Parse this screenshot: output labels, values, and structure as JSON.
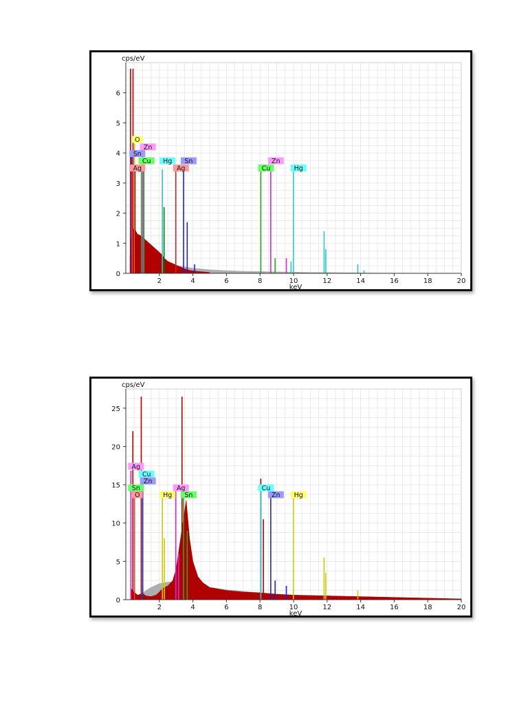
{
  "chart_data": [
    {
      "type": "bar",
      "ylabel": "cps/eV",
      "xlabel": "keV",
      "xlim": [
        0,
        20
      ],
      "ylim": [
        0,
        7
      ],
      "xticks": [
        2,
        4,
        6,
        8,
        10,
        12,
        14,
        16,
        18,
        20
      ],
      "yticks": [
        0,
        1,
        2,
        3,
        4,
        5,
        6
      ],
      "grid": true,
      "element_labels": [
        {
          "text": "O",
          "x": 0.52,
          "y": 4.45,
          "color": "#ffff66"
        },
        {
          "text": "Zn",
          "x": 1.01,
          "y": 4.2,
          "color": "#ff99ff"
        },
        {
          "text": "Sn",
          "x": 0.38,
          "y": 3.98,
          "color": "#9999ff"
        },
        {
          "text": "Cu",
          "x": 0.93,
          "y": 3.74,
          "color": "#66ff66"
        },
        {
          "text": "Hg",
          "x": 2.18,
          "y": 3.74,
          "color": "#66ffff"
        },
        {
          "text": "Sn",
          "x": 3.44,
          "y": 3.74,
          "color": "#9999ff"
        },
        {
          "text": "Ag",
          "x": 0.38,
          "y": 3.5,
          "color": "#ff9999"
        },
        {
          "text": "Ag",
          "x": 2.98,
          "y": 3.5,
          "color": "#ff9999"
        },
        {
          "text": "Zn",
          "x": 8.64,
          "y": 3.74,
          "color": "#ff99ff"
        },
        {
          "text": "Cu",
          "x": 8.05,
          "y": 3.5,
          "color": "#66ff66"
        },
        {
          "text": "Hg",
          "x": 9.99,
          "y": 3.5,
          "color": "#66ffff"
        }
      ],
      "series": [
        {
          "color": "#aaaaaa",
          "x": [
            0.3,
            0.6,
            1.0,
            1.5,
            2.0,
            2.5,
            3.0,
            3.5,
            4.0,
            5.0,
            6.0,
            7.0,
            8.0,
            9.0,
            10.0,
            11.0,
            12.0,
            13.0,
            14.0,
            15.0,
            16.0,
            18.0,
            20.0
          ],
          "values": [
            0.02,
            0.05,
            0.12,
            0.2,
            0.26,
            0.28,
            0.26,
            0.22,
            0.17,
            0.12,
            0.09,
            0.07,
            0.06,
            0.05,
            0.04,
            0.03,
            0.025,
            0.02,
            0.015,
            0.01,
            0.008,
            0.005,
            0.003
          ]
        },
        {
          "color": "#b00000",
          "x": [
            0.25,
            0.35,
            0.5,
            0.7,
            0.9,
            1.1,
            1.3,
            1.5,
            1.7,
            1.9,
            2.1,
            2.3,
            2.5,
            2.7,
            2.9,
            3.1,
            3.3,
            3.5,
            3.8,
            4.2,
            4.6,
            5.0
          ],
          "values": [
            0.6,
            1.3,
            1.5,
            1.3,
            1.25,
            1.15,
            1.05,
            0.95,
            0.85,
            0.75,
            0.65,
            0.5,
            0.4,
            0.35,
            0.3,
            0.25,
            0.2,
            0.15,
            0.1,
            0.07,
            0.05,
            0.03
          ]
        }
      ],
      "lines": [
        {
          "x": 0.28,
          "y": 6.8,
          "color": "#b00000"
        },
        {
          "x": 0.43,
          "y": 6.8,
          "color": "#b00000"
        },
        {
          "x": 0.52,
          "y": 4.3,
          "color": "#cccc00"
        },
        {
          "x": 0.35,
          "y": 3.9,
          "color": "#2222cc"
        },
        {
          "x": 0.38,
          "y": 3.4,
          "color": "#ff3333"
        },
        {
          "x": 0.55,
          "y": 3.4,
          "color": "#b00000"
        },
        {
          "x": 0.93,
          "y": 3.6,
          "color": "#22aa22"
        },
        {
          "x": 1.01,
          "y": 4.1,
          "color": "#dd22dd"
        },
        {
          "x": 1.08,
          "y": 3.4,
          "color": "#22aa22"
        },
        {
          "x": 2.18,
          "y": 3.45,
          "color": "#22cccc"
        },
        {
          "x": 2.28,
          "y": 2.2,
          "color": "#007700"
        },
        {
          "x": 2.98,
          "y": 3.45,
          "color": "#cc2222"
        },
        {
          "x": 3.44,
          "y": 3.5,
          "color": "#2222cc"
        },
        {
          "x": 3.66,
          "y": 1.7,
          "color": "#2222cc"
        },
        {
          "x": 4.1,
          "y": 0.3,
          "color": "#2222cc"
        },
        {
          "x": 8.05,
          "y": 3.4,
          "color": "#22aa22"
        },
        {
          "x": 8.64,
          "y": 3.4,
          "color": "#dd22dd"
        },
        {
          "x": 8.9,
          "y": 0.5,
          "color": "#22aa22"
        },
        {
          "x": 9.57,
          "y": 0.5,
          "color": "#dd22dd"
        },
        {
          "x": 9.99,
          "y": 3.4,
          "color": "#22cccc"
        },
        {
          "x": 9.85,
          "y": 0.4,
          "color": "#22cccc"
        },
        {
          "x": 11.82,
          "y": 1.4,
          "color": "#22cccc"
        },
        {
          "x": 11.92,
          "y": 0.8,
          "color": "#22cccc"
        },
        {
          "x": 13.83,
          "y": 0.3,
          "color": "#22cccc"
        },
        {
          "x": 14.2,
          "y": 0.1,
          "color": "#22cccc"
        }
      ]
    },
    {
      "type": "bar",
      "ylabel": "cps/eV",
      "xlabel": "keV",
      "xlim": [
        0,
        20
      ],
      "ylim": [
        0,
        27.5
      ],
      "xticks": [
        2,
        4,
        6,
        8,
        10,
        12,
        14,
        16,
        18,
        20
      ],
      "yticks": [
        0,
        5,
        10,
        15,
        20,
        25
      ],
      "grid": true,
      "element_labels": [
        {
          "text": "Ag",
          "x": 0.3,
          "y": 17.4,
          "color": "#ff99ff"
        },
        {
          "text": "Cu",
          "x": 0.93,
          "y": 16.4,
          "color": "#66ffff"
        },
        {
          "text": "Zn",
          "x": 1.01,
          "y": 15.5,
          "color": "#9999ff"
        },
        {
          "text": "Sn",
          "x": 0.3,
          "y": 14.6,
          "color": "#66ff66"
        },
        {
          "text": "O",
          "x": 0.52,
          "y": 13.7,
          "color": "#ff9999"
        },
        {
          "text": "Hg",
          "x": 2.18,
          "y": 13.7,
          "color": "#ffff66"
        },
        {
          "text": "Ag",
          "x": 2.98,
          "y": 14.6,
          "color": "#ff99ff"
        },
        {
          "text": "Sn",
          "x": 3.44,
          "y": 13.7,
          "color": "#66ff66"
        },
        {
          "text": "Cu",
          "x": 8.05,
          "y": 14.6,
          "color": "#66ffff"
        },
        {
          "text": "Zn",
          "x": 8.64,
          "y": 13.7,
          "color": "#9999ff"
        },
        {
          "text": "Hg",
          "x": 9.99,
          "y": 13.7,
          "color": "#ffff66"
        }
      ],
      "series": [
        {
          "color": "#aaaaaa",
          "x": [
            0.3,
            0.6,
            1.0,
            1.5,
            2.0,
            2.5,
            3.0,
            3.5,
            4.0,
            5.0,
            6.0,
            7.0,
            8.0,
            9.0,
            10.0,
            11.0,
            12.0,
            13.0,
            14.0,
            15.0,
            16.0,
            18.0,
            20.0
          ],
          "values": [
            0.1,
            0.3,
            0.9,
            1.6,
            2.1,
            2.3,
            2.3,
            2.2,
            2.0,
            1.6,
            1.3,
            1.1,
            0.9,
            0.75,
            0.6,
            0.5,
            0.42,
            0.35,
            0.28,
            0.22,
            0.18,
            0.1,
            0.05
          ]
        },
        {
          "color": "#b00000",
          "x": [
            0.3,
            0.5,
            0.7,
            1.0,
            1.2,
            1.5,
            1.8,
            2.0,
            2.2,
            2.5,
            2.8,
            3.0,
            3.1,
            3.2,
            3.4,
            3.6,
            3.8,
            4.0,
            4.3,
            4.6,
            5.0,
            6.0,
            7.0,
            8.0,
            9.0,
            10.0,
            12.0,
            14.0,
            16.0,
            18.0,
            20.0
          ],
          "values": [
            1.5,
            1.0,
            0.6,
            0.8,
            0.5,
            0.4,
            0.6,
            1.0,
            1.5,
            1.8,
            2.5,
            4.0,
            5.5,
            7.0,
            10.0,
            13.0,
            8.0,
            5.0,
            3.0,
            2.2,
            1.6,
            1.2,
            1.0,
            0.9,
            0.7,
            0.6,
            0.5,
            0.4,
            0.3,
            0.2,
            0.1
          ]
        }
      ],
      "lines": [
        {
          "x": 0.3,
          "y": 16.8,
          "color": "#dd22dd"
        },
        {
          "x": 0.42,
          "y": 22.0,
          "color": "#b00000"
        },
        {
          "x": 0.52,
          "y": 13.5,
          "color": "#ff3333"
        },
        {
          "x": 0.93,
          "y": 16.0,
          "color": "#22cccc"
        },
        {
          "x": 1.01,
          "y": 15.0,
          "color": "#2222cc"
        },
        {
          "x": 0.92,
          "y": 26.5,
          "color": "#b00000"
        },
        {
          "x": 2.18,
          "y": 13.5,
          "color": "#cccc00"
        },
        {
          "x": 2.3,
          "y": 8.0,
          "color": "#cccc00"
        },
        {
          "x": 2.98,
          "y": 14.2,
          "color": "#dd22dd"
        },
        {
          "x": 3.15,
          "y": 6.0,
          "color": "#dd22dd"
        },
        {
          "x": 3.35,
          "y": 26.5,
          "color": "#b00000"
        },
        {
          "x": 3.44,
          "y": 13.5,
          "color": "#22aa22"
        },
        {
          "x": 3.66,
          "y": 9.0,
          "color": "#22aa22"
        },
        {
          "x": 8.05,
          "y": 15.8,
          "color": "#b00000"
        },
        {
          "x": 8.05,
          "y": 14.2,
          "color": "#22cccc"
        },
        {
          "x": 8.2,
          "y": 10.5,
          "color": "#b00000"
        },
        {
          "x": 8.64,
          "y": 13.5,
          "color": "#2222cc"
        },
        {
          "x": 8.9,
          "y": 2.5,
          "color": "#2222cc"
        },
        {
          "x": 9.57,
          "y": 1.8,
          "color": "#2222cc"
        },
        {
          "x": 9.99,
          "y": 13.5,
          "color": "#cccc00"
        },
        {
          "x": 11.82,
          "y": 5.5,
          "color": "#cccc00"
        },
        {
          "x": 11.92,
          "y": 3.5,
          "color": "#cccc00"
        },
        {
          "x": 13.83,
          "y": 1.2,
          "color": "#cccc00"
        }
      ]
    }
  ]
}
